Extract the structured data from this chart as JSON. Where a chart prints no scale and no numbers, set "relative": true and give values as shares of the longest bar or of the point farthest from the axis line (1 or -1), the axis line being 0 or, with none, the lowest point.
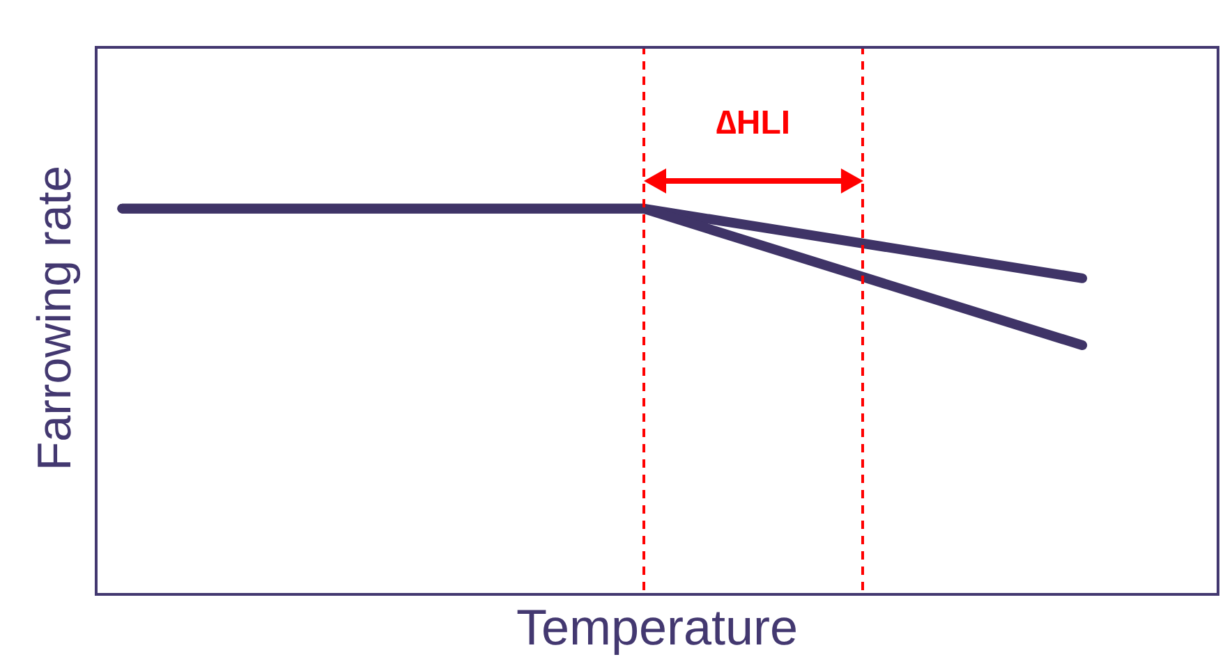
{
  "chart_data": {
    "type": "line",
    "relative": true,
    "xlabel": "Temperature",
    "ylabel": "Farrowing rate",
    "categories": [
      null,
      null,
      null,
      null,
      null,
      null,
      null,
      null,
      null,
      null,
      null,
      null,
      null,
      null,
      null,
      null,
      null,
      null,
      null,
      null,
      null,
      null,
      null,
      null,
      null,
      null,
      null,
      null,
      null,
      null,
      null,
      null,
      null,
      null,
      null,
      null,
      null,
      null,
      null,
      null
    ],
    "series": [
      {
        "color": "#3f3467",
        "values": [
          1,
          null,
          null,
          null,
          null,
          null,
          null,
          null,
          null,
          null,
          null,
          null,
          null,
          null,
          null,
          null,
          null,
          null,
          null,
          1,
          null,
          null,
          null,
          null,
          null,
          null,
          null,
          null,
          null,
          null,
          null,
          null,
          null,
          null,
          null,
          0.82,
          null,
          null,
          null,
          null
        ]
      },
      {
        "color": "#3f3467",
        "values": [
          1,
          null,
          null,
          null,
          null,
          null,
          null,
          null,
          null,
          null,
          null,
          null,
          null,
          null,
          null,
          null,
          null,
          null,
          null,
          1,
          null,
          null,
          null,
          null,
          null,
          null,
          null,
          null,
          null,
          null,
          null,
          null,
          null,
          null,
          null,
          0.647,
          null,
          null,
          null,
          null
        ]
      }
    ],
    "annotations": [
      "∆HLI"
    ]
  }
}
